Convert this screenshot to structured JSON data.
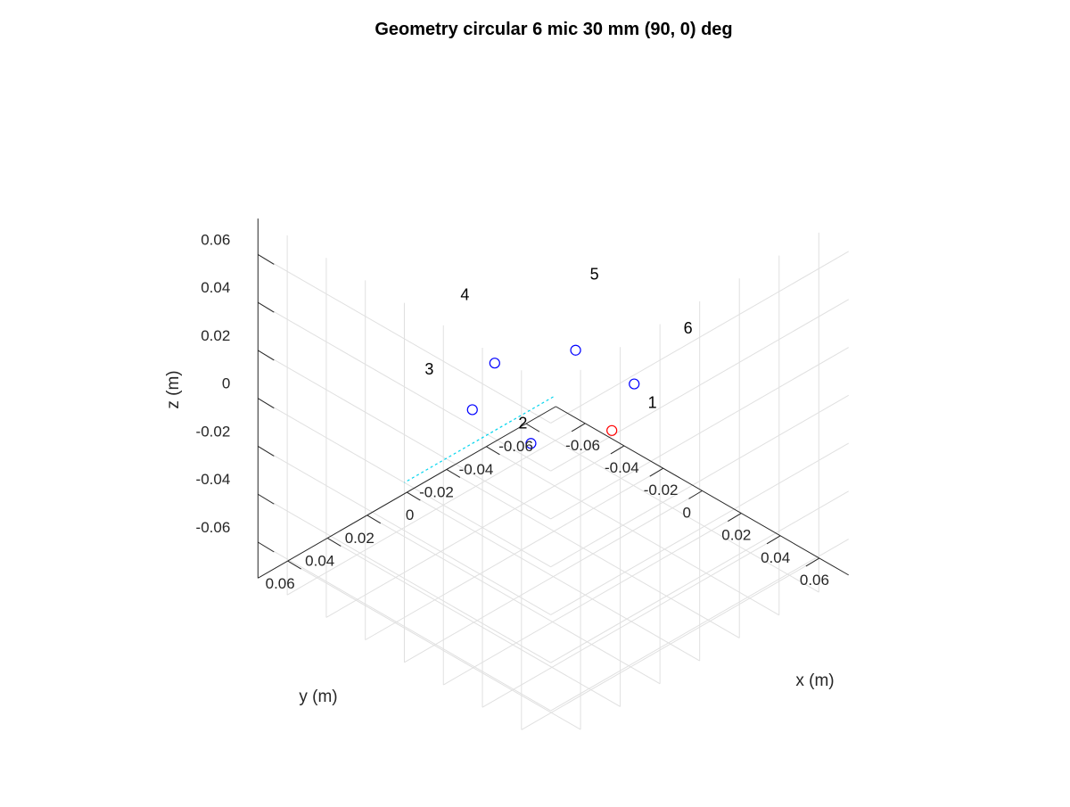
{
  "chart_data": {
    "type": "scatter",
    "title": "Geometry circular 6 mic 30 mm (90, 0) deg",
    "xlabel": "x (m)",
    "ylabel": "y (m)",
    "zlabel": "z (m)",
    "xlim": [
      -0.075,
      0.075
    ],
    "ylim": [
      -0.075,
      0.075
    ],
    "zlim": [
      -0.075,
      0.075
    ],
    "x_ticks": [
      -0.06,
      -0.04,
      -0.02,
      0,
      0.02,
      0.04,
      0.06
    ],
    "y_ticks": [
      -0.06,
      -0.04,
      -0.02,
      0,
      0.02,
      0.04,
      0.06
    ],
    "z_ticks": [
      -0.06,
      -0.04,
      -0.02,
      0,
      0.02,
      0.04,
      0.06
    ],
    "x_tick_labels": [
      "-0.06",
      "-0.04",
      "-0.02",
      "0",
      "0.02",
      "0.04",
      "0.06"
    ],
    "y_tick_labels": [
      "-0.06",
      "-0.04",
      "-0.02",
      "0",
      "0.02",
      "0.04",
      "0.06"
    ],
    "z_tick_labels": [
      "-0.06",
      "-0.04",
      "-0.02",
      "0",
      "0.02",
      "0.04",
      "0.06"
    ],
    "grid": true,
    "view": {
      "azimuth": -45,
      "elevation": 35
    },
    "microphones": [
      {
        "label": "1",
        "x": 0.03,
        "y": 0.0,
        "z": 0,
        "color": "#ff0000"
      },
      {
        "label": "2",
        "x": 0.015,
        "y": 0.026,
        "z": 0,
        "color": "#0000ff"
      },
      {
        "label": "3",
        "x": -0.015,
        "y": 0.026,
        "z": 0,
        "color": "#0000ff"
      },
      {
        "label": "4",
        "x": -0.03,
        "y": 0.0,
        "z": 0,
        "color": "#0000ff"
      },
      {
        "label": "5",
        "x": -0.015,
        "y": -0.026,
        "z": 0,
        "color": "#0000ff"
      },
      {
        "label": "6",
        "x": 0.015,
        "y": -0.026,
        "z": 0,
        "color": "#0000ff"
      }
    ],
    "steering_line": {
      "from": [
        0,
        0,
        0
      ],
      "to": [
        0,
        0.075,
        0
      ],
      "color": "#00d4ee",
      "style": "dashed"
    }
  }
}
